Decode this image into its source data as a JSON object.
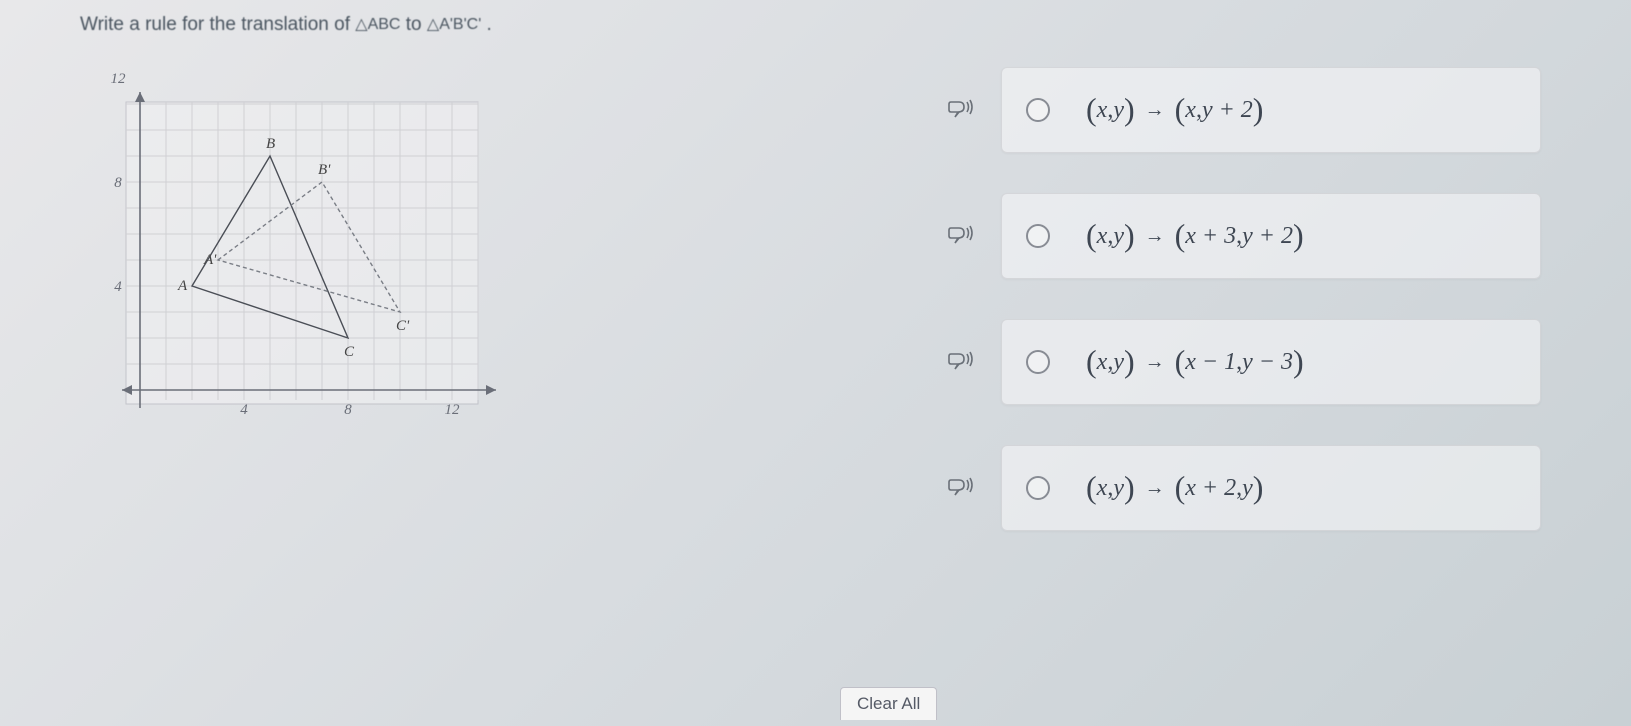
{
  "question": {
    "prefix": "Write a rule for the translation of ",
    "tri1": "△ABC",
    "mid": " to ",
    "tri2": "△A'B'C'",
    "suffix": "."
  },
  "graph": {
    "bg": "#f0f0f2",
    "grid_color": "#d0d0d4",
    "axis_color": "#6a6e78",
    "border_color": "#b0b0b8",
    "x_ticks": [
      4,
      8,
      12
    ],
    "y_ticks": [
      4,
      8,
      12
    ],
    "tick_color": "#6a6e78",
    "tick_fontsize": 15,
    "triangles": {
      "ABC": {
        "A": [
          2,
          4
        ],
        "B": [
          5,
          9
        ],
        "C": [
          8,
          2
        ],
        "stroke": "#4a4e56",
        "dash": "none",
        "label_A": "A",
        "label_B": "B",
        "label_C": "C"
      },
      "ApBpCp": {
        "A": [
          3,
          5
        ],
        "B": [
          7,
          8
        ],
        "C": [
          10,
          3
        ],
        "stroke": "#7a7e86",
        "dash": "4 3",
        "label_A": "A'",
        "label_B": "B'",
        "label_C": "C'"
      }
    }
  },
  "answers": [
    {
      "lhs_x": "x",
      "lhs_y": "y",
      "rhs_x": "x",
      "rhs_y": "y + 2"
    },
    {
      "lhs_x": "x",
      "lhs_y": "y",
      "rhs_x": "x + 3",
      "rhs_y": "y + 2"
    },
    {
      "lhs_x": "x",
      "lhs_y": "y",
      "rhs_x": "x − 1",
      "rhs_y": "y − 3"
    },
    {
      "lhs_x": "x",
      "lhs_y": "y",
      "rhs_x": "x + 2",
      "rhs_y": "y"
    }
  ],
  "clear_label": "Clear All",
  "tts_glyph": "🗨⁾"
}
